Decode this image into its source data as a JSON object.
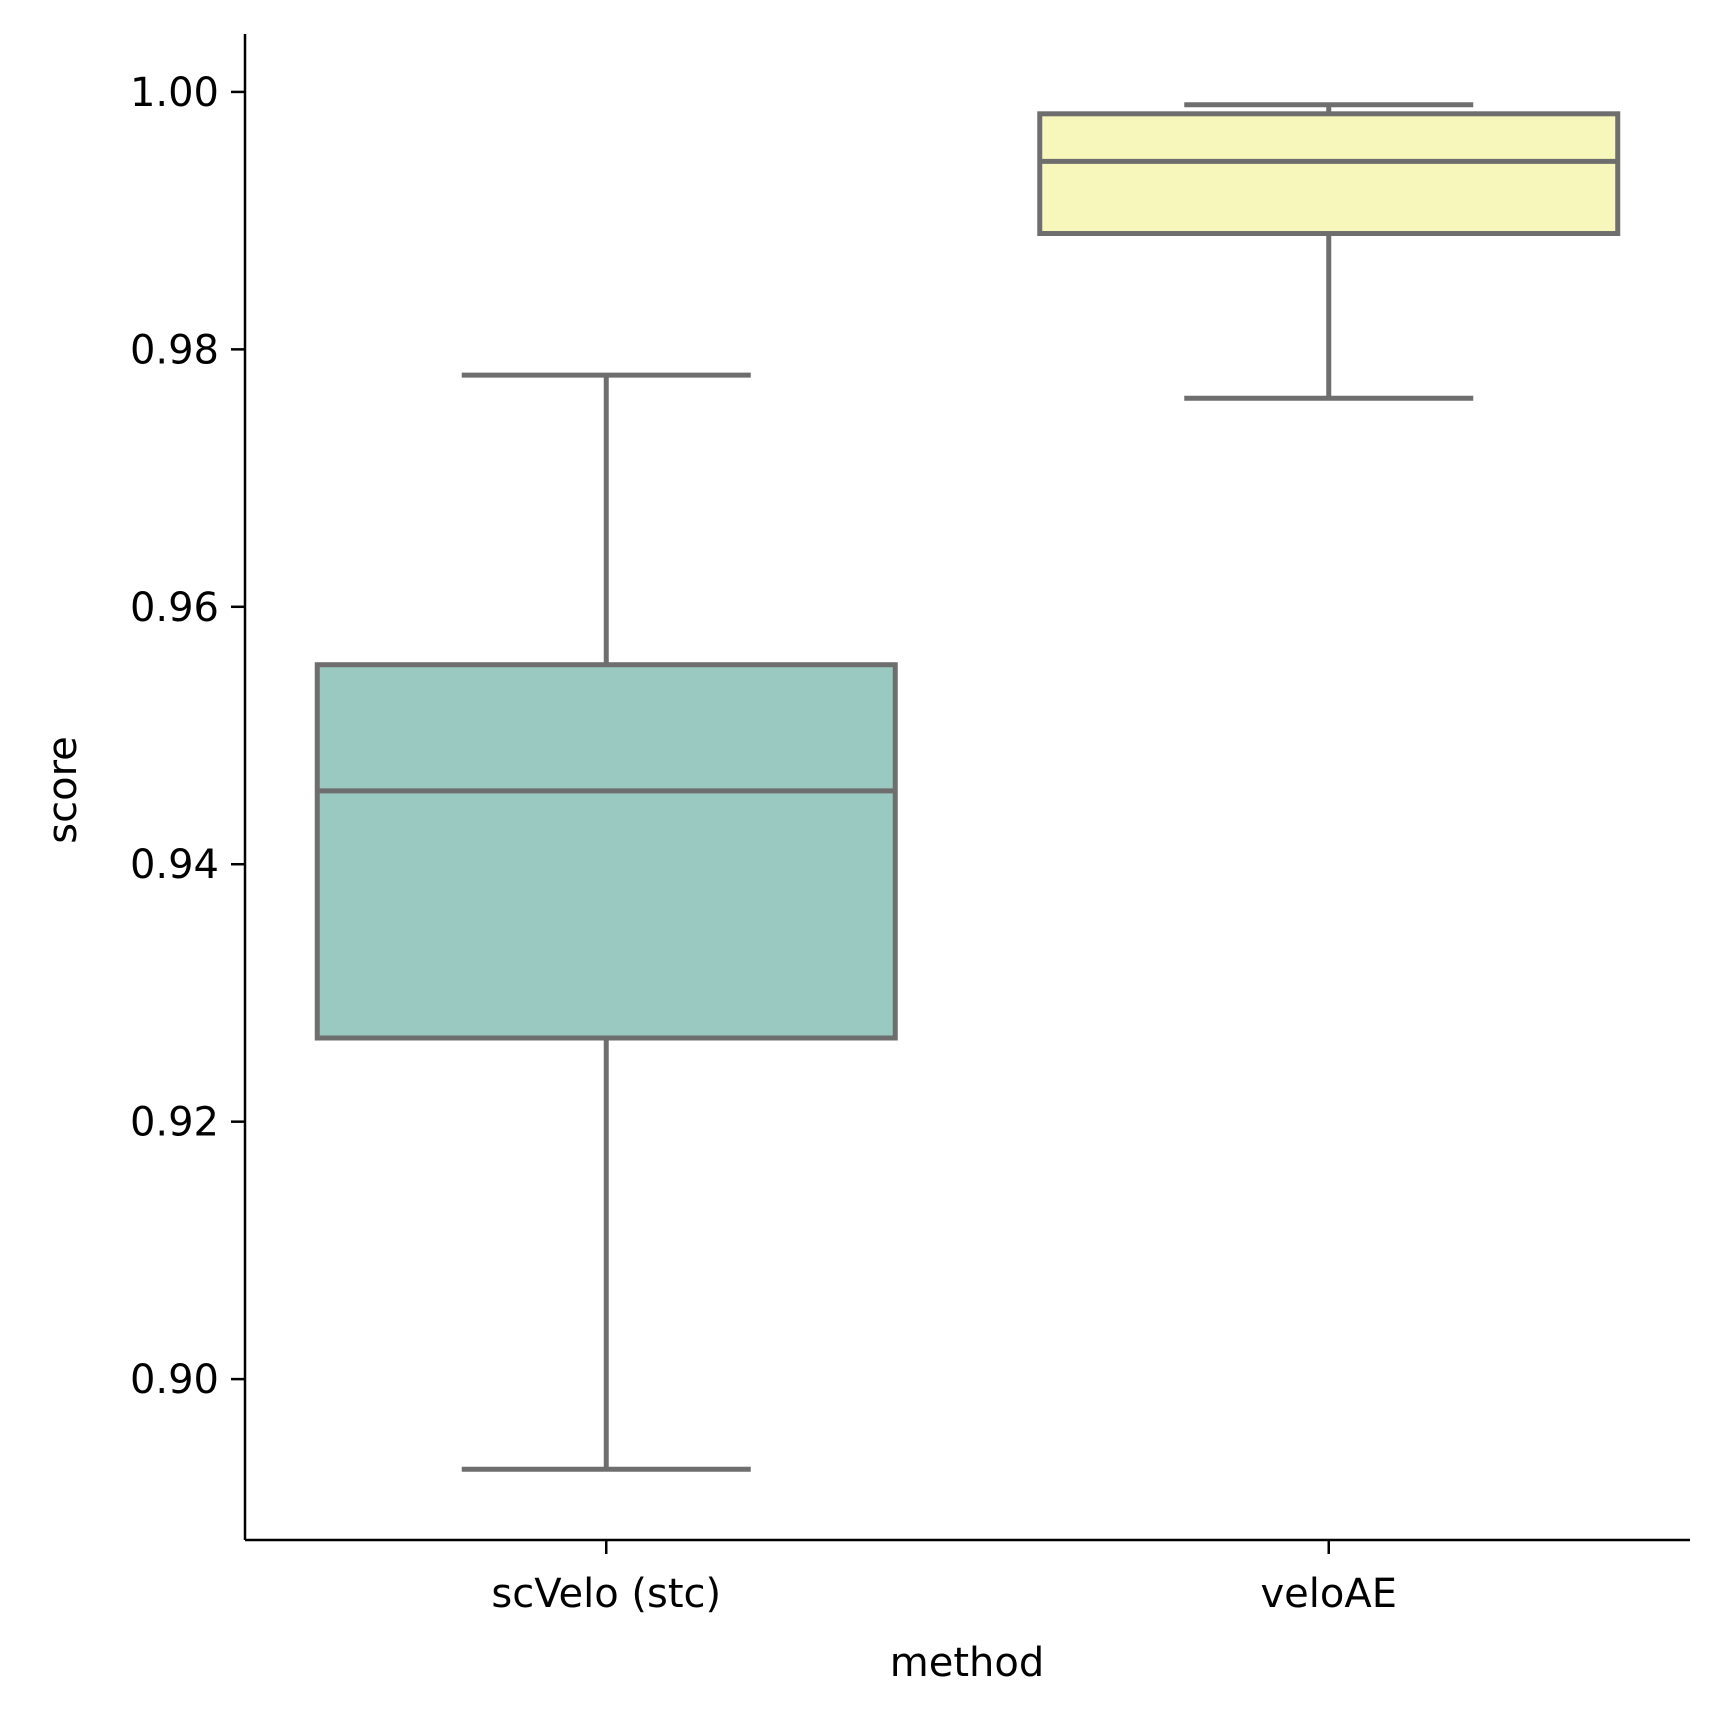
{
  "chart_data": {
    "type": "box",
    "xlabel": "method",
    "ylabel": "score",
    "ylim": [
      0.8875,
      1.0045
    ],
    "yticks": [
      0.9,
      0.92,
      0.94,
      0.96,
      0.98,
      1.0
    ],
    "ytick_labels": [
      "0.90",
      "0.92",
      "0.94",
      "0.96",
      "0.98",
      "1.00"
    ],
    "categories": [
      "scVelo (stc)",
      "veloAE"
    ],
    "boxes": [
      {
        "category": "scVelo (stc)",
        "whisker_low": 0.893,
        "q1": 0.9265,
        "median": 0.9457,
        "q3": 0.9555,
        "whisker_high": 0.978,
        "color": "#99c9c0"
      },
      {
        "category": "veloAE",
        "whisker_low": 0.9762,
        "q1": 0.989,
        "median": 0.9946,
        "q3": 0.9983,
        "whisker_high": 0.999,
        "color": "#f7f7bb"
      }
    ],
    "line_color": "#6e6e6e",
    "grid": false,
    "legend": "none"
  }
}
